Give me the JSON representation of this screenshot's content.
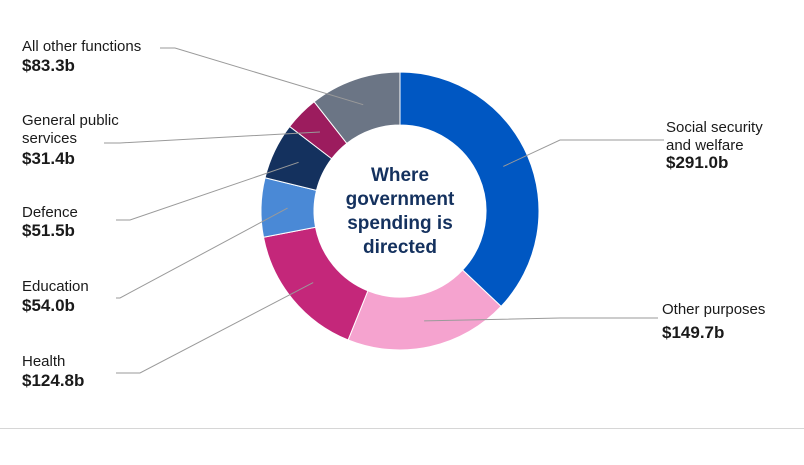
{
  "chart_data": {
    "type": "pie",
    "variant": "donut",
    "center_label": [
      "Where",
      "government",
      "spending is",
      "directed"
    ],
    "slices": [
      {
        "key": "social",
        "name_lines": [
          "Social security",
          "and welfare"
        ],
        "value_label": "$291.0b",
        "value": 291.0,
        "color": "#0057c2"
      },
      {
        "key": "other",
        "name_lines": [
          "Other purposes"
        ],
        "value_label": "$149.7b",
        "value": 149.7,
        "color": "#f5a3cf"
      },
      {
        "key": "health",
        "name_lines": [
          "Health"
        ],
        "value_label": "$124.8b",
        "value": 124.8,
        "color": "#c4277a"
      },
      {
        "key": "education",
        "name_lines": [
          "Education"
        ],
        "value_label": "$54.0b",
        "value": 54.0,
        "color": "#4a89d6"
      },
      {
        "key": "defence",
        "name_lines": [
          "Defence"
        ],
        "value_label": "$51.5b",
        "value": 51.5,
        "color": "#14315e"
      },
      {
        "key": "gps",
        "name_lines": [
          "General public",
          "services"
        ],
        "value_label": "$31.4b",
        "value": 31.4,
        "color": "#9c1c5e"
      },
      {
        "key": "allother",
        "name_lines": [
          "All other functions"
        ],
        "value_label": "$83.3b",
        "value": 83.3,
        "color": "#6b7585"
      }
    ]
  }
}
